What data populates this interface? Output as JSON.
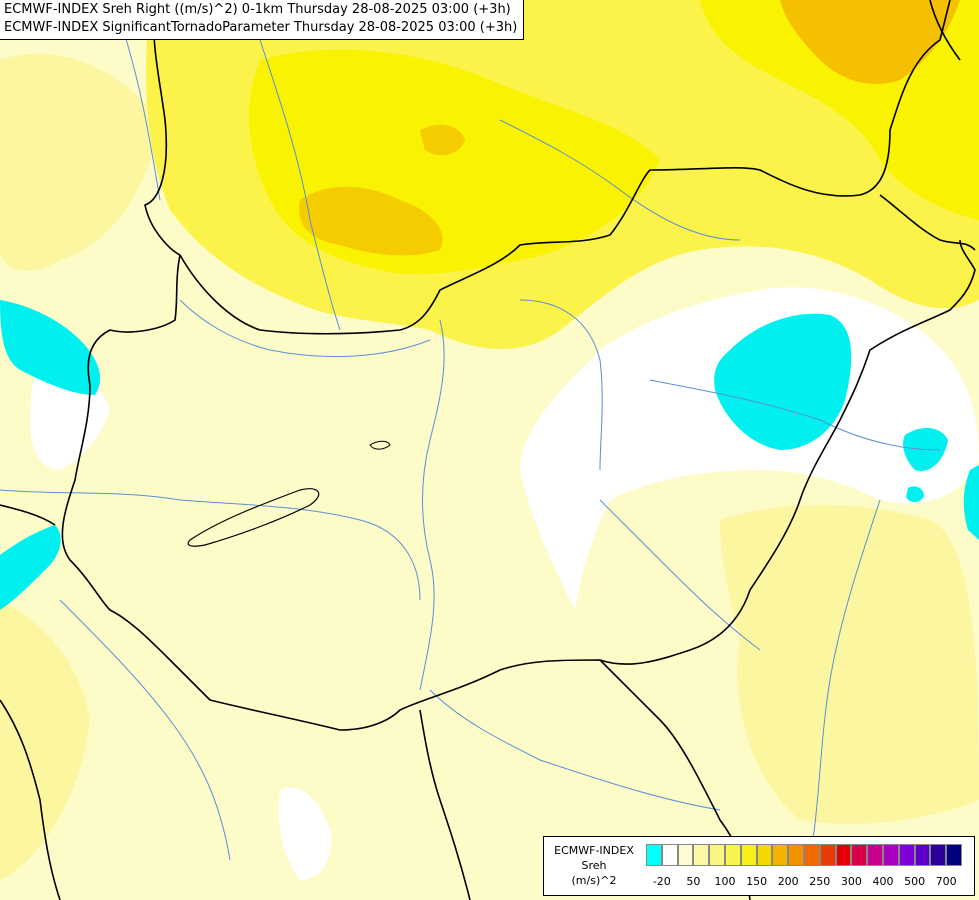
{
  "title": {
    "line1": "ECMWF-INDEX Sreh Right ((m/s)^2) 0-1km Thursday 28-08-2025 03:00 (+3h)",
    "line2": "ECMWF-INDEX SignificantTornadoParameter Thursday 28-08-2025 03:00 (+3h)"
  },
  "legend": {
    "line1": "ECMWF-INDEX",
    "line2": "Sreh",
    "line3": "(m/s)^2",
    "colors": [
      "#00ffff",
      "#ffffff",
      "#fdfbd0",
      "#fbf8a8",
      "#f8f580",
      "#f7f34f",
      "#f6ef1a",
      "#f5d800",
      "#f3b400",
      "#f29200",
      "#ee6a00",
      "#ea3c00",
      "#e40000",
      "#d8004a",
      "#c8008c",
      "#a800c0",
      "#8000d8",
      "#5a00c8",
      "#2a0098",
      "#000080"
    ],
    "ticks": [
      "-20",
      "50",
      "100",
      "150",
      "200",
      "250",
      "300",
      "400",
      "500",
      "700"
    ]
  },
  "colors": {
    "background": "#fdfbc8",
    "pale_yellow": "#fcf8a8",
    "yellow": "#fbf34a",
    "bright_yellow": "#f9f500",
    "orange_yellow": "#f5c800",
    "white_zone": "#ffffff",
    "cyan": "#00f0f0",
    "border": "#000000",
    "river": "#5a8fd6"
  }
}
